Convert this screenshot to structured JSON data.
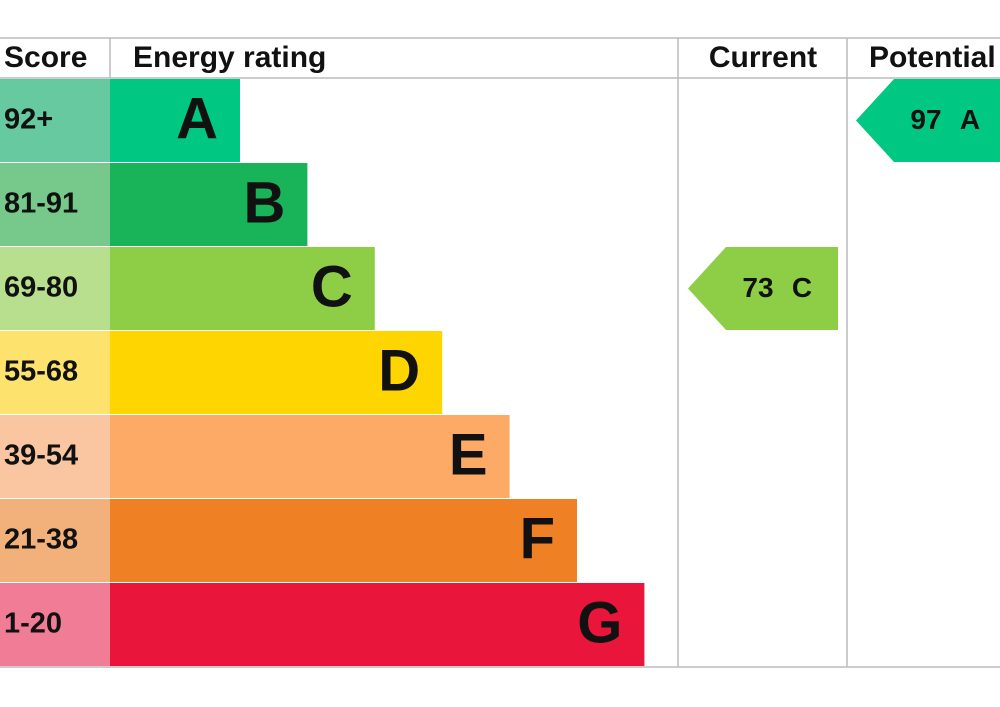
{
  "header": {
    "score": "Score",
    "energy_rating": "Energy rating",
    "current": "Current",
    "potential": "Potential"
  },
  "bands": [
    {
      "score": "92+",
      "letter": "A",
      "color": "#00c781",
      "score_color": "#66c9a0"
    },
    {
      "score": "81-91",
      "letter": "B",
      "color": "#19b459",
      "score_color": "#76c98b"
    },
    {
      "score": "69-80",
      "letter": "C",
      "color": "#8dce46",
      "score_color": "#b8df8e"
    },
    {
      "score": "55-68",
      "letter": "D",
      "color": "#ffd500",
      "score_color": "#fde36d"
    },
    {
      "score": "39-54",
      "letter": "E",
      "color": "#fcaa65",
      "score_color": "#f9c6a1"
    },
    {
      "score": "21-38",
      "letter": "F",
      "color": "#ef8023",
      "score_color": "#f2b17b"
    },
    {
      "score": "1-20",
      "letter": "G",
      "color": "#e9153b",
      "score_color": "#f07c96"
    }
  ],
  "current": {
    "value": 73,
    "letter": "C"
  },
  "potential": {
    "value": 97,
    "letter": "A"
  }
}
